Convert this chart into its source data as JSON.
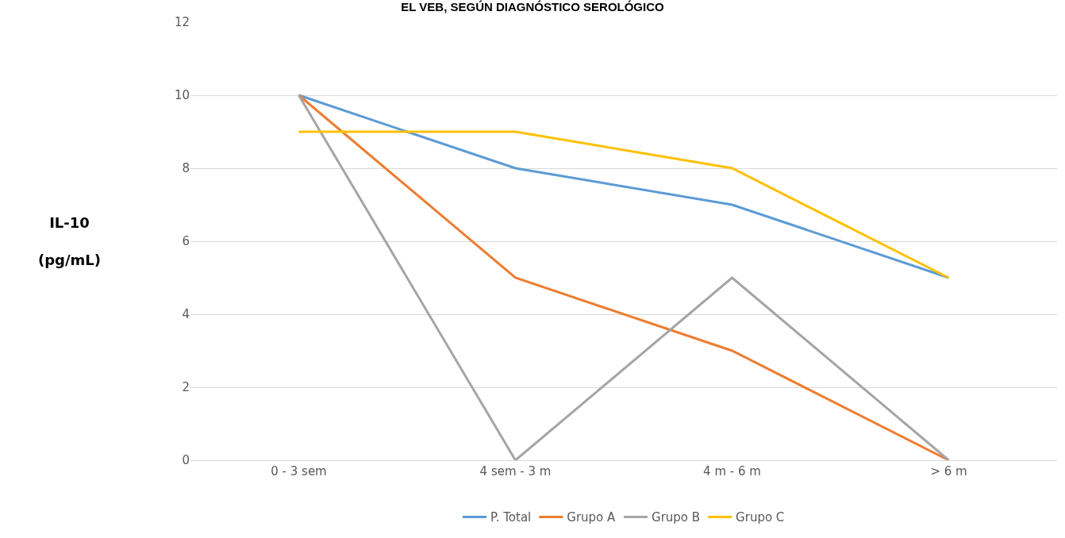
{
  "chart_data": {
    "type": "line",
    "title": "EL VEB, SEGÚN DIAGNÓSTICO SEROLÓGICO",
    "ylabel": "IL-10\n(pg/mL)",
    "categories": [
      "0 - 3 sem",
      "4 sem - 3 m",
      "4 m - 6 m",
      "> 6 m"
    ],
    "series": [
      {
        "name": "P. Total",
        "color": "#5b9bd5",
        "values": [
          10,
          8,
          7,
          5
        ]
      },
      {
        "name": "Grupo A",
        "color": "#ed7d31",
        "values": [
          10,
          5,
          3,
          0
        ]
      },
      {
        "name": "Grupo B",
        "color": "#a5a5a5",
        "values": [
          10,
          0,
          5,
          0
        ]
      },
      {
        "name": "Grupo C",
        "color": "#ffc000",
        "values": [
          9,
          9,
          8,
          5
        ]
      }
    ],
    "ylim": [
      0,
      12
    ],
    "yticks": [
      0,
      2,
      4,
      6,
      8,
      10,
      12
    ],
    "grid": "y",
    "legend": "bottom",
    "marker": "none",
    "line_style": "solid"
  }
}
